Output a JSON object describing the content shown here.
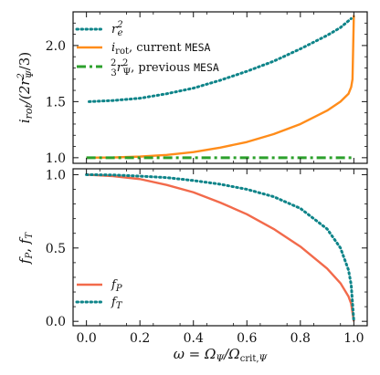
{
  "colors": {
    "teal": "#0e8489",
    "orange": "#ff8c1a",
    "green": "#2ca02c",
    "coral": "#f26a4b",
    "axis": "#111111"
  },
  "chart_data": [
    {
      "type": "line",
      "title": "",
      "xlabel": "",
      "ylabel": "i_rot/(2r_Ψ^2/3)",
      "xlim": [
        -0.05,
        1.05
      ],
      "ylim": [
        0.95,
        2.3
      ],
      "xticks": [
        0.0,
        0.2,
        0.4,
        0.6,
        0.8,
        1.0
      ],
      "yticks": [
        1.0,
        1.5,
        2.0
      ],
      "ytick_labels": [
        "1.0",
        "1.5",
        "2.0"
      ],
      "grid": false,
      "legend_position": "top-left",
      "series": [
        {
          "name": "r_e^2",
          "style": "dotted",
          "color": "#0e8489",
          "x": [
            0.01,
            0.1,
            0.2,
            0.3,
            0.4,
            0.5,
            0.6,
            0.7,
            0.8,
            0.9,
            0.95,
            0.99
          ],
          "y": [
            1.5,
            1.51,
            1.53,
            1.57,
            1.62,
            1.69,
            1.77,
            1.86,
            1.97,
            2.09,
            2.16,
            2.24
          ]
        },
        {
          "name": "i_rot, current MESA",
          "style": "solid",
          "color": "#ff8c1a",
          "x": [
            0.0,
            0.1,
            0.2,
            0.3,
            0.4,
            0.5,
            0.6,
            0.7,
            0.8,
            0.9,
            0.95,
            0.98,
            0.99,
            0.995,
            1.0
          ],
          "y": [
            1.0,
            1.002,
            1.01,
            1.025,
            1.05,
            1.09,
            1.14,
            1.21,
            1.3,
            1.42,
            1.5,
            1.57,
            1.63,
            1.7,
            2.27
          ]
        },
        {
          "name": "(2/3)r_Ψ^2, previous MESA",
          "style": "dashdot",
          "color": "#2ca02c",
          "x": [
            0.0,
            1.0
          ],
          "y": [
            1.0,
            1.0
          ]
        }
      ]
    },
    {
      "type": "line",
      "title": "",
      "xlabel": "ω = Ω_Ψ/Ω_crit,Ψ",
      "ylabel": "f_P, f_T",
      "xlim": [
        -0.05,
        1.05
      ],
      "ylim": [
        -0.03,
        1.04
      ],
      "xticks": [
        0.0,
        0.2,
        0.4,
        0.6,
        0.8,
        1.0
      ],
      "xtick_labels": [
        "0.0",
        "0.2",
        "0.4",
        "0.6",
        "0.8",
        "1.0"
      ],
      "yticks": [
        0.0,
        0.5,
        1.0
      ],
      "ytick_labels": [
        "0.0",
        "0.5",
        "1.0"
      ],
      "grid": false,
      "legend_position": "bottom-left",
      "series": [
        {
          "name": "f_P",
          "style": "solid",
          "color": "#f26a4b",
          "x": [
            0.0,
            0.1,
            0.2,
            0.3,
            0.4,
            0.5,
            0.6,
            0.7,
            0.8,
            0.9,
            0.95,
            0.98,
            0.99,
            1.0
          ],
          "y": [
            1.0,
            0.99,
            0.97,
            0.93,
            0.88,
            0.81,
            0.73,
            0.63,
            0.51,
            0.36,
            0.26,
            0.17,
            0.12,
            0.0
          ]
        },
        {
          "name": "f_T",
          "style": "dotted",
          "color": "#0e8489",
          "x": [
            0.0,
            0.1,
            0.2,
            0.3,
            0.4,
            0.5,
            0.6,
            0.7,
            0.8,
            0.9,
            0.95,
            0.98,
            0.99,
            1.0
          ],
          "y": [
            1.0,
            0.998,
            0.99,
            0.98,
            0.96,
            0.935,
            0.9,
            0.85,
            0.77,
            0.63,
            0.5,
            0.35,
            0.25,
            0.0
          ]
        }
      ]
    }
  ]
}
